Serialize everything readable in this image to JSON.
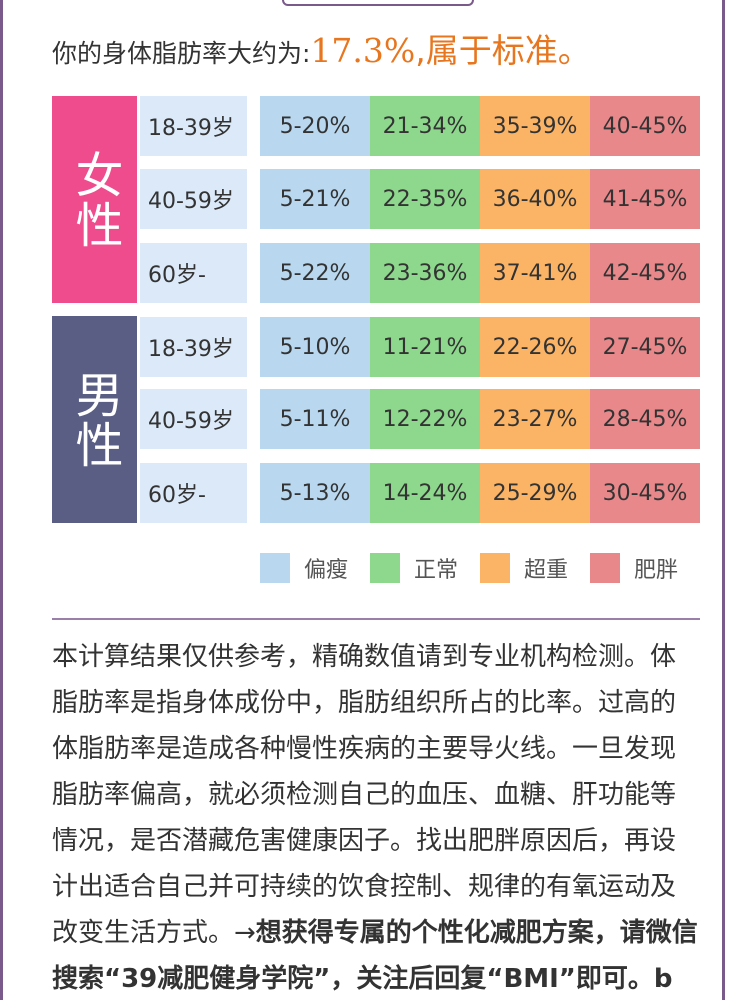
{
  "result": {
    "prefix": "你的身体脂肪率大约为:",
    "value": "17.3%",
    "suffix": ",属于标准。"
  },
  "table": {
    "groups": [
      {
        "gender": "女性",
        "rows": [
          {
            "age": "18-39岁",
            "values": [
              "5-20%",
              "21-34%",
              "35-39%",
              "40-45%"
            ]
          },
          {
            "age": "40-59岁",
            "values": [
              "5-21%",
              "22-35%",
              "36-40%",
              "41-45%"
            ]
          },
          {
            "age": "60岁-",
            "values": [
              "5-22%",
              "23-36%",
              "37-41%",
              "42-45%"
            ]
          }
        ]
      },
      {
        "gender": "男性",
        "rows": [
          {
            "age": "18-39岁",
            "values": [
              "5-10%",
              "11-21%",
              "22-26%",
              "27-45%"
            ]
          },
          {
            "age": "40-59岁",
            "values": [
              "5-11%",
              "12-22%",
              "23-27%",
              "28-45%"
            ]
          },
          {
            "age": "60岁-",
            "values": [
              "5-13%",
              "14-24%",
              "25-29%",
              "30-45%"
            ]
          }
        ]
      }
    ]
  },
  "legend": [
    {
      "label": "偏瘦",
      "color": "#b9d8ef"
    },
    {
      "label": "正常",
      "color": "#8ed88e"
    },
    {
      "label": "超重",
      "color": "#fbb466"
    },
    {
      "label": "肥胖",
      "color": "#e8888b"
    }
  ],
  "description": {
    "text": "本计算结果仅供参考，精确数值请到专业机构检测。体脂肪率是指身体成份中，脂肪组织所占的比率。过高的体脂肪率是造成各种慢性疾病的主要导火线。一旦发现脂肪率偏高，就必须检测自己的血压、血糖、肝功能等情况，是否潜藏危害健康因子。找出肥胖原因后，再设计出适合自己并可持续的饮食控制、规律的有氧运动及改变生活方式。→",
    "bold": "想获得专属的个性化减肥方案，请微信搜索“39减肥健身学院”，关注后回复“BMI”即可。b"
  }
}
